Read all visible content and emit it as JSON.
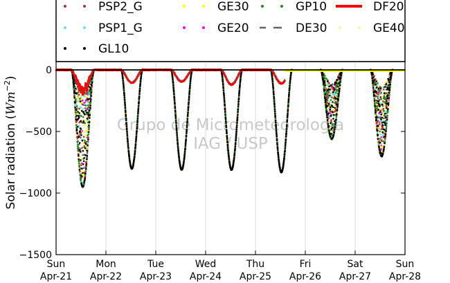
{
  "chart_data": {
    "type": "scatter",
    "ylabel": "Solar radiation ($Wm^{-2}$)",
    "ylabel_main": "Solar radiation (",
    "ylabel_unit": "Wm",
    "ylabel_exp": "−2",
    "ylabel_close": ")",
    "ylim": [
      -1500,
      80
    ],
    "yticks": [
      0,
      -500,
      -1000,
      -1500
    ],
    "ytick_labels": [
      "0",
      "−500",
      "−1000",
      "−1500"
    ],
    "xlim": [
      0,
      7
    ],
    "xticks": [
      0,
      1,
      2,
      3,
      4,
      5,
      6,
      7
    ],
    "xtick_days": [
      "Sun",
      "Mon",
      "Tue",
      "Wed",
      "Thu",
      "Fri",
      "Sat",
      "Sun"
    ],
    "xtick_dates": [
      "Apr-21",
      "Apr-22",
      "Apr-23",
      "Apr-24",
      "Apr-25",
      "Apr-26",
      "Apr-27",
      "Apr-28"
    ],
    "grid": true,
    "legend_position": "top",
    "watermark": [
      "Grupo de Micrometeorologia",
      "IAG / USP"
    ],
    "series": [
      {
        "name": "PSP2_G",
        "color": "#b03030",
        "marker": "dot"
      },
      {
        "name": "GE30",
        "color": "#ffff00",
        "marker": "dot"
      },
      {
        "name": "GP10",
        "color": "#1a8a1a",
        "marker": "dot"
      },
      {
        "name": "DF20",
        "color": "#ff0000",
        "marker": "line"
      },
      {
        "name": "PSP1_G",
        "color": "#66e0e0",
        "marker": "dot"
      },
      {
        "name": "GE20",
        "color": "#ff00ff",
        "marker": "dot"
      },
      {
        "name": "DE30",
        "color": "#606060",
        "marker": "dash"
      },
      {
        "name": "GE40",
        "color": "#f5f5a0",
        "marker": "dot"
      },
      {
        "name": "GL10",
        "color": "#000000",
        "marker": "dot"
      }
    ],
    "days": [
      {
        "day": 0,
        "start": 0.31,
        "end": 0.76,
        "peak": -950,
        "spiky": true,
        "diffuse_peak": -200
      },
      {
        "day": 1,
        "start": 0.31,
        "end": 0.73,
        "peak": -800,
        "spiky": false,
        "diffuse_peak": -105
      },
      {
        "day": 2,
        "start": 0.31,
        "end": 0.73,
        "peak": -810,
        "spiky": false,
        "diffuse_peak": -95
      },
      {
        "day": 3,
        "start": 0.31,
        "end": 0.73,
        "peak": -810,
        "spiky": false,
        "diffuse_peak": -120
      },
      {
        "day": 4,
        "start": 0.31,
        "end": 0.73,
        "peak": -830,
        "spiky": false,
        "diffuse_peak": -110
      },
      {
        "day": 5,
        "start": 0.31,
        "end": 0.75,
        "peak": -560,
        "spiky": true,
        "diffuse_peak": 0
      },
      {
        "day": 6,
        "start": 0.31,
        "end": 0.75,
        "peak": -700,
        "spiky": true,
        "diffuse_peak": 0
      }
    ],
    "diffuse_end_day": 4.6,
    "baseline_series_after": "GE30"
  }
}
